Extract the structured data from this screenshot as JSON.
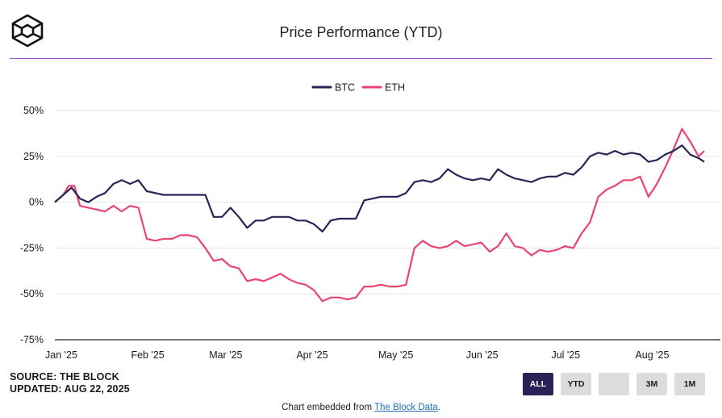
{
  "header": {
    "title": "Price Performance (YTD)"
  },
  "meta": {
    "source": "SOURCE: THE BLOCK",
    "updated": "UPDATED: AUG 22, 2025"
  },
  "range_buttons": [
    {
      "label": "ALL",
      "active": true
    },
    {
      "label": "YTD",
      "active": false
    },
    {
      "label": "",
      "active": false
    },
    {
      "label": "3M",
      "active": false
    },
    {
      "label": "1M",
      "active": false
    }
  ],
  "footer": {
    "prefix": "Chart embedded from ",
    "link_text": "The Block Data",
    "suffix": "."
  },
  "colors": {
    "btc": "#2a2356",
    "eth": "#e8456f",
    "accent_rule": "#9b4fd0",
    "grid": "#e6e6e6",
    "button_active": "#2c2157",
    "button": "#dcdcdc"
  },
  "chart_data": {
    "type": "line",
    "title": "Price Performance (YTD)",
    "legend_position": "top-center",
    "grid": true,
    "ylim": [
      -75,
      50
    ],
    "y_ticks": [
      50,
      25,
      0,
      -25,
      -50,
      -75
    ],
    "y_tick_labels": [
      "50%",
      "25%",
      "0%",
      "-25%",
      "-50%",
      "-75%"
    ],
    "x_ticks": [
      "2025-01-01",
      "2025-02-01",
      "2025-03-01",
      "2025-04-01",
      "2025-05-01",
      "2025-06-01",
      "2025-07-01",
      "2025-08-01"
    ],
    "x_tick_labels": [
      "Jan '25",
      "Feb '25",
      "Mar '25",
      "Apr '25",
      "May '25",
      "Jun '25",
      "Jul '25",
      "Aug '25"
    ],
    "xlim": [
      "2025-01-01",
      "2025-08-22"
    ],
    "series": [
      {
        "name": "BTC",
        "points": [
          [
            "2025-01-01",
            0
          ],
          [
            "2025-01-04",
            4
          ],
          [
            "2025-01-07",
            8
          ],
          [
            "2025-01-10",
            2
          ],
          [
            "2025-01-13",
            0
          ],
          [
            "2025-01-16",
            3
          ],
          [
            "2025-01-19",
            5
          ],
          [
            "2025-01-22",
            10
          ],
          [
            "2025-01-25",
            12
          ],
          [
            "2025-01-28",
            10
          ],
          [
            "2025-01-31",
            12
          ],
          [
            "2025-02-03",
            6
          ],
          [
            "2025-02-06",
            5
          ],
          [
            "2025-02-09",
            4
          ],
          [
            "2025-02-12",
            4
          ],
          [
            "2025-02-15",
            4
          ],
          [
            "2025-02-18",
            4
          ],
          [
            "2025-02-21",
            4
          ],
          [
            "2025-02-24",
            4
          ],
          [
            "2025-02-27",
            -8
          ],
          [
            "2025-03-02",
            -8
          ],
          [
            "2025-03-05",
            -3
          ],
          [
            "2025-03-08",
            -8
          ],
          [
            "2025-03-11",
            -14
          ],
          [
            "2025-03-14",
            -10
          ],
          [
            "2025-03-17",
            -10
          ],
          [
            "2025-03-20",
            -8
          ],
          [
            "2025-03-23",
            -8
          ],
          [
            "2025-03-26",
            -8
          ],
          [
            "2025-03-29",
            -10
          ],
          [
            "2025-04-01",
            -10
          ],
          [
            "2025-04-04",
            -12
          ],
          [
            "2025-04-07",
            -16
          ],
          [
            "2025-04-10",
            -10
          ],
          [
            "2025-04-13",
            -9
          ],
          [
            "2025-04-16",
            -9
          ],
          [
            "2025-04-19",
            -9
          ],
          [
            "2025-04-22",
            1
          ],
          [
            "2025-04-25",
            2
          ],
          [
            "2025-04-28",
            3
          ],
          [
            "2025-05-01",
            3
          ],
          [
            "2025-05-04",
            3
          ],
          [
            "2025-05-07",
            5
          ],
          [
            "2025-05-10",
            11
          ],
          [
            "2025-05-13",
            12
          ],
          [
            "2025-05-16",
            11
          ],
          [
            "2025-05-19",
            13
          ],
          [
            "2025-05-22",
            18
          ],
          [
            "2025-05-25",
            15
          ],
          [
            "2025-05-28",
            13
          ],
          [
            "2025-05-31",
            12
          ],
          [
            "2025-06-03",
            13
          ],
          [
            "2025-06-06",
            12
          ],
          [
            "2025-06-09",
            18
          ],
          [
            "2025-06-12",
            15
          ],
          [
            "2025-06-15",
            13
          ],
          [
            "2025-06-18",
            12
          ],
          [
            "2025-06-21",
            11
          ],
          [
            "2025-06-24",
            13
          ],
          [
            "2025-06-27",
            14
          ],
          [
            "2025-06-30",
            14
          ],
          [
            "2025-07-03",
            16
          ],
          [
            "2025-07-06",
            15
          ],
          [
            "2025-07-09",
            19
          ],
          [
            "2025-07-12",
            25
          ],
          [
            "2025-07-15",
            27
          ],
          [
            "2025-07-18",
            26
          ],
          [
            "2025-07-21",
            28
          ],
          [
            "2025-07-24",
            26
          ],
          [
            "2025-07-27",
            27
          ],
          [
            "2025-07-30",
            26
          ],
          [
            "2025-08-02",
            22
          ],
          [
            "2025-08-05",
            23
          ],
          [
            "2025-08-08",
            26
          ],
          [
            "2025-08-11",
            28
          ],
          [
            "2025-08-14",
            31
          ],
          [
            "2025-08-17",
            26
          ],
          [
            "2025-08-20",
            24
          ],
          [
            "2025-08-22",
            22
          ]
        ]
      },
      {
        "name": "ETH",
        "points": [
          [
            "2025-01-01",
            0
          ],
          [
            "2025-01-04",
            4
          ],
          [
            "2025-01-06",
            9
          ],
          [
            "2025-01-08",
            9
          ],
          [
            "2025-01-10",
            -2
          ],
          [
            "2025-01-13",
            -3
          ],
          [
            "2025-01-16",
            -4
          ],
          [
            "2025-01-19",
            -5
          ],
          [
            "2025-01-22",
            -2
          ],
          [
            "2025-01-25",
            -5
          ],
          [
            "2025-01-28",
            -2
          ],
          [
            "2025-01-31",
            -3
          ],
          [
            "2025-02-03",
            -20
          ],
          [
            "2025-02-06",
            -21
          ],
          [
            "2025-02-09",
            -20
          ],
          [
            "2025-02-12",
            -20
          ],
          [
            "2025-02-15",
            -18
          ],
          [
            "2025-02-18",
            -18
          ],
          [
            "2025-02-21",
            -19
          ],
          [
            "2025-02-24",
            -25
          ],
          [
            "2025-02-27",
            -32
          ],
          [
            "2025-03-02",
            -31
          ],
          [
            "2025-03-05",
            -35
          ],
          [
            "2025-03-08",
            -36
          ],
          [
            "2025-03-11",
            -43
          ],
          [
            "2025-03-14",
            -42
          ],
          [
            "2025-03-17",
            -43
          ],
          [
            "2025-03-20",
            -41
          ],
          [
            "2025-03-23",
            -39
          ],
          [
            "2025-03-26",
            -42
          ],
          [
            "2025-03-29",
            -44
          ],
          [
            "2025-04-01",
            -45
          ],
          [
            "2025-04-04",
            -48
          ],
          [
            "2025-04-07",
            -54
          ],
          [
            "2025-04-10",
            -52
          ],
          [
            "2025-04-13",
            -52
          ],
          [
            "2025-04-16",
            -53
          ],
          [
            "2025-04-19",
            -52
          ],
          [
            "2025-04-22",
            -46
          ],
          [
            "2025-04-25",
            -46
          ],
          [
            "2025-04-28",
            -45
          ],
          [
            "2025-05-01",
            -46
          ],
          [
            "2025-05-04",
            -46
          ],
          [
            "2025-05-07",
            -45
          ],
          [
            "2025-05-10",
            -25
          ],
          [
            "2025-05-13",
            -21
          ],
          [
            "2025-05-16",
            -24
          ],
          [
            "2025-05-19",
            -25
          ],
          [
            "2025-05-22",
            -24
          ],
          [
            "2025-05-25",
            -21
          ],
          [
            "2025-05-28",
            -24
          ],
          [
            "2025-05-31",
            -23
          ],
          [
            "2025-06-03",
            -22
          ],
          [
            "2025-06-06",
            -27
          ],
          [
            "2025-06-09",
            -24
          ],
          [
            "2025-06-12",
            -17
          ],
          [
            "2025-06-15",
            -24
          ],
          [
            "2025-06-18",
            -25
          ],
          [
            "2025-06-21",
            -29
          ],
          [
            "2025-06-24",
            -26
          ],
          [
            "2025-06-27",
            -27
          ],
          [
            "2025-06-30",
            -26
          ],
          [
            "2025-07-03",
            -24
          ],
          [
            "2025-07-06",
            -25
          ],
          [
            "2025-07-09",
            -17
          ],
          [
            "2025-07-12",
            -11
          ],
          [
            "2025-07-15",
            3
          ],
          [
            "2025-07-18",
            7
          ],
          [
            "2025-07-21",
            9
          ],
          [
            "2025-07-24",
            12
          ],
          [
            "2025-07-27",
            12
          ],
          [
            "2025-07-30",
            14
          ],
          [
            "2025-08-02",
            3
          ],
          [
            "2025-08-05",
            10
          ],
          [
            "2025-08-08",
            19
          ],
          [
            "2025-08-11",
            29
          ],
          [
            "2025-08-14",
            40
          ],
          [
            "2025-08-17",
            33
          ],
          [
            "2025-08-20",
            25
          ],
          [
            "2025-08-22",
            28
          ]
        ]
      }
    ]
  }
}
